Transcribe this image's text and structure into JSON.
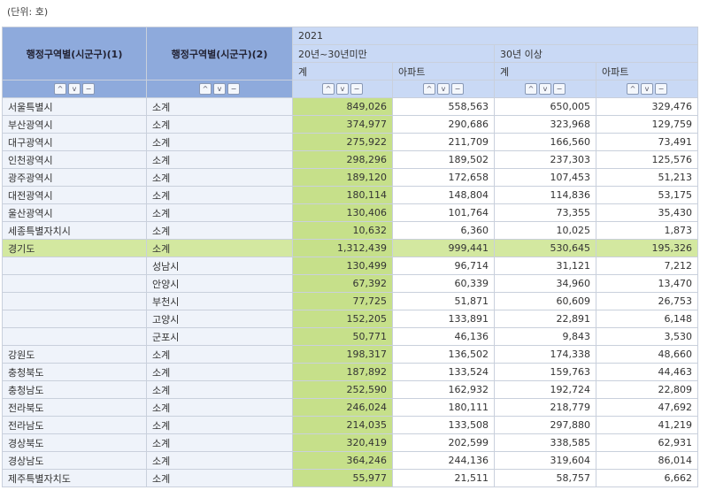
{
  "unit_label": "(단위: 호)",
  "header": {
    "col1": "행정구역별(시군구)(1)",
    "col2": "행정구역별(시군구)(2)",
    "year": "2021",
    "group1": "20년~30년미만",
    "group2": "30년 이상",
    "sub_total": "계",
    "sub_apt": "아파트"
  },
  "sort_buttons": {
    "up": "^",
    "down": "v",
    "remove": "−"
  },
  "colors": {
    "header_dark": "#8eaadc",
    "header_light": "#c9d9f5",
    "highlight_green": "#c6e08a",
    "row_highlight": "#d3e8a0"
  },
  "rows": [
    {
      "r1": "서울특별시",
      "r2": "소계",
      "v": [
        "849,026",
        "558,563",
        "650,005",
        "329,476"
      ]
    },
    {
      "r1": "부산광역시",
      "r2": "소계",
      "v": [
        "374,977",
        "290,686",
        "323,968",
        "129,759"
      ]
    },
    {
      "r1": "대구광역시",
      "r2": "소계",
      "v": [
        "275,922",
        "211,709",
        "166,560",
        "73,491"
      ]
    },
    {
      "r1": "인천광역시",
      "r2": "소계",
      "v": [
        "298,296",
        "189,502",
        "237,303",
        "125,576"
      ]
    },
    {
      "r1": "광주광역시",
      "r2": "소계",
      "v": [
        "189,120",
        "172,658",
        "107,453",
        "51,213"
      ]
    },
    {
      "r1": "대전광역시",
      "r2": "소계",
      "v": [
        "180,114",
        "148,804",
        "114,836",
        "53,175"
      ]
    },
    {
      "r1": "울산광역시",
      "r2": "소계",
      "v": [
        "130,406",
        "101,764",
        "73,355",
        "35,430"
      ]
    },
    {
      "r1": "세종특별자치시",
      "r2": "소계",
      "v": [
        "10,632",
        "6,360",
        "10,025",
        "1,873"
      ]
    },
    {
      "r1": "경기도",
      "r2": "소계",
      "v": [
        "1,312,439",
        "999,441",
        "530,645",
        "195,326"
      ],
      "highlight": true
    },
    {
      "r1": "",
      "r2": "성남시",
      "v": [
        "130,499",
        "96,714",
        "31,121",
        "7,212"
      ]
    },
    {
      "r1": "",
      "r2": "안양시",
      "v": [
        "67,392",
        "60,339",
        "34,960",
        "13,470"
      ]
    },
    {
      "r1": "",
      "r2": "부천시",
      "v": [
        "77,725",
        "51,871",
        "60,609",
        "26,753"
      ]
    },
    {
      "r1": "",
      "r2": "고양시",
      "v": [
        "152,205",
        "133,891",
        "22,891",
        "6,148"
      ]
    },
    {
      "r1": "",
      "r2": "군포시",
      "v": [
        "50,771",
        "46,136",
        "9,843",
        "3,530"
      ]
    },
    {
      "r1": "강원도",
      "r2": "소계",
      "v": [
        "198,317",
        "136,502",
        "174,338",
        "48,660"
      ]
    },
    {
      "r1": "충청북도",
      "r2": "소계",
      "v": [
        "187,892",
        "133,524",
        "159,763",
        "44,463"
      ]
    },
    {
      "r1": "충청남도",
      "r2": "소계",
      "v": [
        "252,590",
        "162,932",
        "192,724",
        "22,809"
      ]
    },
    {
      "r1": "전라북도",
      "r2": "소계",
      "v": [
        "246,024",
        "180,111",
        "218,779",
        "47,692"
      ]
    },
    {
      "r1": "전라남도",
      "r2": "소계",
      "v": [
        "214,035",
        "133,508",
        "297,880",
        "41,219"
      ]
    },
    {
      "r1": "경상북도",
      "r2": "소계",
      "v": [
        "320,419",
        "202,599",
        "338,585",
        "62,931"
      ]
    },
    {
      "r1": "경상남도",
      "r2": "소계",
      "v": [
        "364,246",
        "244,136",
        "319,604",
        "86,014"
      ]
    },
    {
      "r1": "제주특별자치도",
      "r2": "소계",
      "v": [
        "55,977",
        "21,511",
        "58,757",
        "6,662"
      ]
    }
  ]
}
